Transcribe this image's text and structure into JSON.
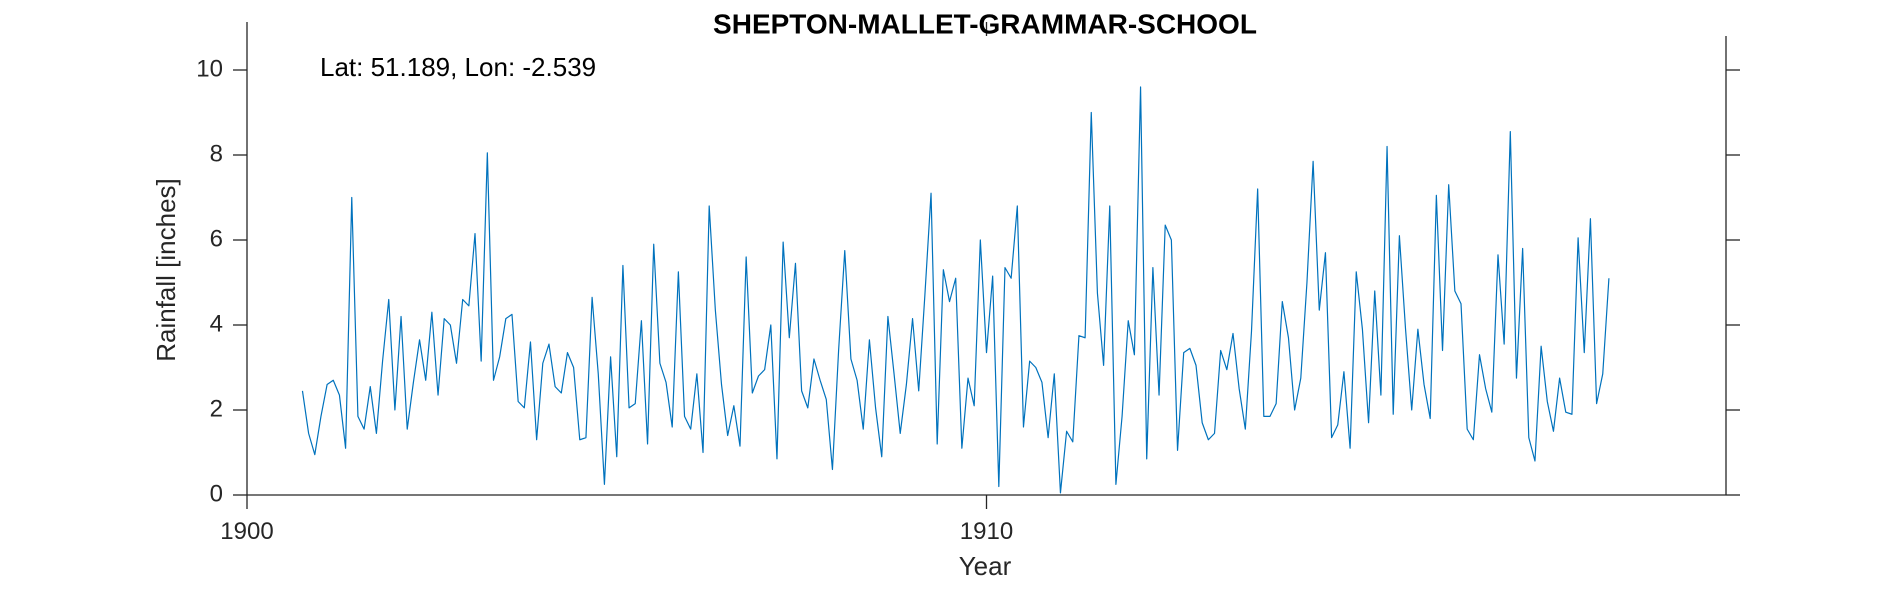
{
  "chart_data": {
    "type": "line",
    "title": "SHEPTON-MALLET-GRAMMAR-SCHOOL",
    "annotation": "Lat: 51.189, Lon: -2.539",
    "xlabel": "Year",
    "ylabel": "Rainfall [inches]",
    "xlim": [
      1900,
      1920
    ],
    "ylim": [
      0,
      10.8
    ],
    "x_ticks": [
      1900,
      1910
    ],
    "y_ticks": [
      0,
      2,
      4,
      6,
      8,
      10
    ],
    "grid": false,
    "line_color": "#0072BD",
    "axis_color": "#262626",
    "series": [
      {
        "x_start_year": 1900.75,
        "x_step_years": 0.0833333,
        "values": [
          2.45,
          1.45,
          0.95,
          1.85,
          2.6,
          2.7,
          2.35,
          1.1,
          7.0,
          1.85,
          1.55,
          2.55,
          1.45,
          3.15,
          4.6,
          2.0,
          4.2,
          1.55,
          2.65,
          3.65,
          2.7,
          4.3,
          2.35,
          4.15,
          4.0,
          3.1,
          4.6,
          4.45,
          6.15,
          3.15,
          8.05,
          2.7,
          3.25,
          4.15,
          4.25,
          2.2,
          2.05,
          3.6,
          1.3,
          3.1,
          3.55,
          2.55,
          2.4,
          3.35,
          3.0,
          1.3,
          1.35,
          4.65,
          2.85,
          0.25,
          3.25,
          0.9,
          5.4,
          2.05,
          2.15,
          4.1,
          1.2,
          5.9,
          3.1,
          2.65,
          1.6,
          5.25,
          1.85,
          1.55,
          2.85,
          1.0,
          6.8,
          4.35,
          2.6,
          1.4,
          2.1,
          1.15,
          5.6,
          2.4,
          2.8,
          2.95,
          4.0,
          0.85,
          5.95,
          3.7,
          5.45,
          2.45,
          2.05,
          3.2,
          2.7,
          2.25,
          0.6,
          3.4,
          5.75,
          3.2,
          2.7,
          1.55,
          3.65,
          2.05,
          0.9,
          4.2,
          2.85,
          1.45,
          2.6,
          4.15,
          2.45,
          4.7,
          7.1,
          1.2,
          5.3,
          4.55,
          5.1,
          1.1,
          2.75,
          2.1,
          6.0,
          3.35,
          5.15,
          0.2,
          5.35,
          5.1,
          6.8,
          1.6,
          3.15,
          3.0,
          2.65,
          1.35,
          2.85,
          0.05,
          1.5,
          1.25,
          3.75,
          3.7,
          9.0,
          4.75,
          3.05,
          6.8,
          0.25,
          1.85,
          4.1,
          3.3,
          9.6,
          0.85,
          5.35,
          2.35,
          6.35,
          6.0,
          1.05,
          3.35,
          3.45,
          3.05,
          1.7,
          1.3,
          1.45,
          3.4,
          2.95,
          3.8,
          2.5,
          1.55,
          3.85,
          7.2,
          1.85,
          1.85,
          2.15,
          4.55,
          3.7,
          2.0,
          2.75,
          5.0,
          7.85,
          4.35,
          5.7,
          1.35,
          1.65,
          2.9,
          1.1,
          5.25,
          3.9,
          1.7,
          4.8,
          2.35,
          8.2,
          1.9,
          6.1,
          3.9,
          2.0,
          3.9,
          2.6,
          1.8,
          7.05,
          3.4,
          7.3,
          4.8,
          4.5,
          1.55,
          1.3,
          3.3,
          2.5,
          1.95,
          5.65,
          3.55,
          8.55,
          2.75,
          5.8,
          1.35,
          0.8,
          3.5,
          2.2,
          1.5,
          2.75,
          1.95,
          1.9,
          6.05,
          3.35,
          6.5,
          2.15,
          2.85,
          5.1
        ]
      }
    ]
  }
}
